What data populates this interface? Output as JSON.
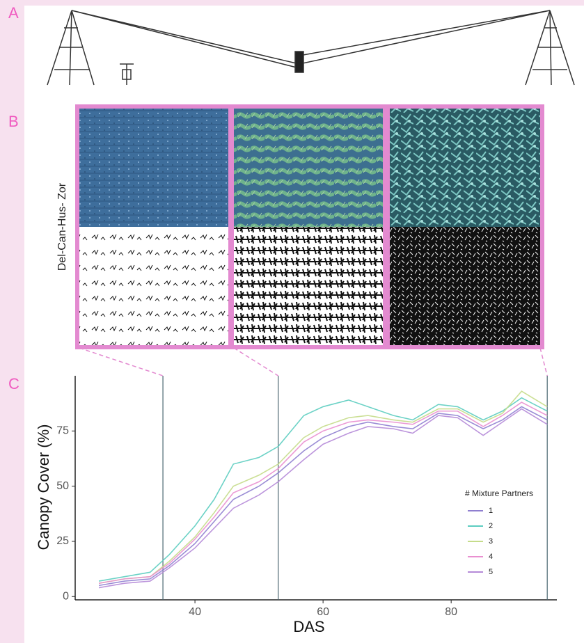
{
  "panels": {
    "labels": [
      "A",
      "B",
      "C"
    ]
  },
  "panel_b": {
    "plot_label": "Del-Can-Hus- Zor"
  },
  "chart_data": {
    "type": "line",
    "x_label": "DAS",
    "y_label": "Canopy Cover (%)",
    "x": [
      25,
      29,
      33,
      36,
      40,
      43,
      46,
      50,
      53,
      57,
      60,
      64,
      67,
      71,
      74,
      78,
      81,
      85,
      88,
      91,
      95
    ],
    "series": [
      {
        "name": "1",
        "color": "#8f7fd0",
        "values": [
          5,
          7,
          8,
          14,
          24,
          34,
          44,
          50,
          56,
          66,
          72,
          77,
          79,
          77,
          76,
          83,
          82,
          76,
          80,
          86,
          80
        ]
      },
      {
        "name": "2",
        "color": "#5ccdc0",
        "values": [
          7,
          9,
          11,
          19,
          32,
          44,
          60,
          63,
          68,
          82,
          86,
          89,
          86,
          82,
          80,
          87,
          86,
          80,
          84,
          90,
          84
        ]
      },
      {
        "name": "3",
        "color": "#c5dc8a",
        "values": [
          6,
          8,
          9,
          16,
          27,
          38,
          50,
          55,
          60,
          72,
          77,
          81,
          82,
          80,
          79,
          85,
          85,
          79,
          83,
          93,
          86
        ]
      },
      {
        "name": "4",
        "color": "#e98fd0",
        "values": [
          6,
          8,
          9,
          15,
          26,
          36,
          47,
          52,
          58,
          70,
          75,
          79,
          80,
          79,
          78,
          84,
          84,
          77,
          82,
          88,
          82
        ]
      },
      {
        "name": "5",
        "color": "#b58ad8",
        "values": [
          4,
          6,
          7,
          13,
          22,
          31,
          40,
          46,
          52,
          62,
          69,
          74,
          77,
          76,
          74,
          82,
          81,
          73,
          79,
          85,
          78
        ]
      }
    ],
    "reference_x": [
      35,
      53,
      95
    ],
    "xlim": [
      21.3,
      96.5
    ],
    "ylim": [
      -1.5,
      100
    ],
    "xticks": [
      40,
      60,
      80
    ],
    "yticks": [
      0,
      25,
      50,
      75
    ],
    "legend_title": "# Mixture Partners",
    "legend": "right"
  }
}
